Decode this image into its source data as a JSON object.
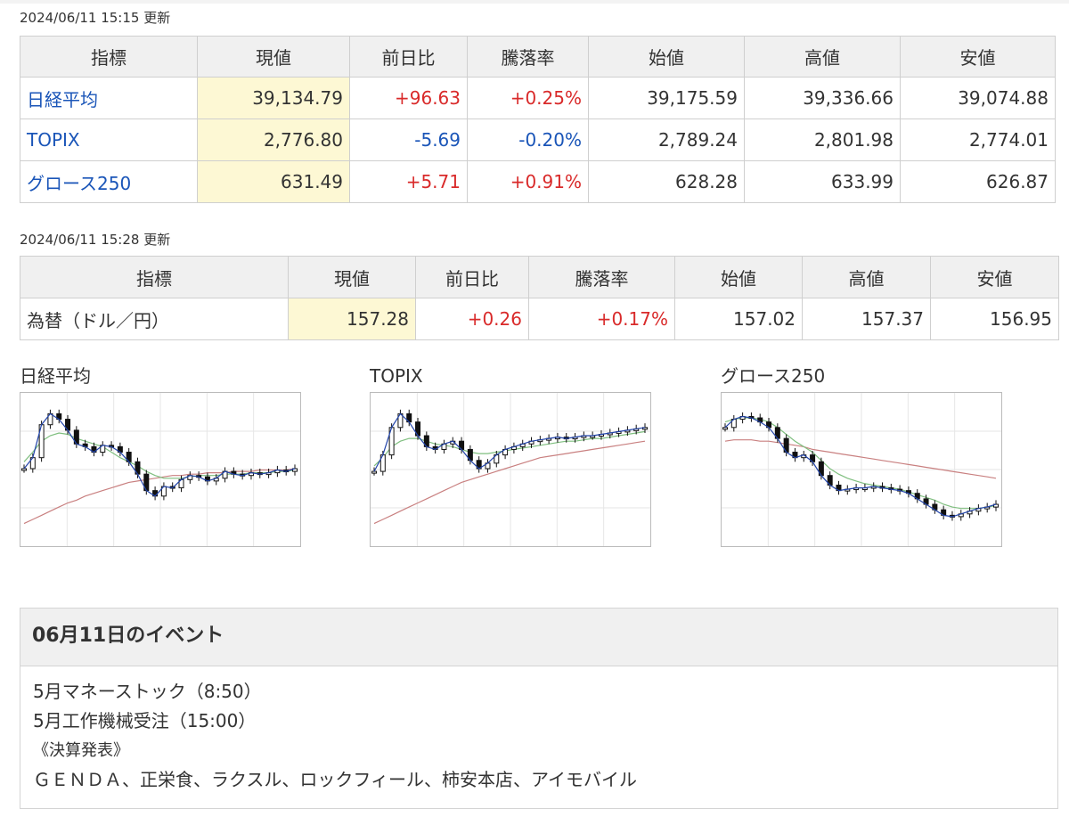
{
  "indices_block": {
    "updated": "2024/06/11 15:15 更新",
    "headers": [
      "指標",
      "現値",
      "前日比",
      "騰落率",
      "始値",
      "高値",
      "安値"
    ],
    "rows": [
      {
        "name": "日経平均",
        "current": "39,134.79",
        "change": "+96.63",
        "rate": "+0.25%",
        "open": "39,175.59",
        "high": "39,336.66",
        "low": "39,074.88",
        "direction": "up"
      },
      {
        "name": "TOPIX",
        "current": "2,776.80",
        "change": "-5.69",
        "rate": "-0.20%",
        "open": "2,789.24",
        "high": "2,801.98",
        "low": "2,774.01",
        "direction": "down"
      },
      {
        "name": "グロース250",
        "current": "631.49",
        "change": "+5.71",
        "rate": "+0.91%",
        "open": "628.28",
        "high": "633.99",
        "low": "626.87",
        "direction": "up"
      }
    ]
  },
  "fx_block": {
    "updated": "2024/06/11 15:28 更新",
    "headers": [
      "指標",
      "現値",
      "前日比",
      "騰落率",
      "始値",
      "高値",
      "安値"
    ],
    "rows": [
      {
        "name": "為替（ドル／円）",
        "current": "157.28",
        "change": "+0.26",
        "rate": "+0.17%",
        "open": "157.02",
        "high": "157.37",
        "low": "156.95",
        "direction": "up"
      }
    ]
  },
  "colors": {
    "up": "#d92a2a",
    "down": "#1a55b8",
    "link": "#1a55b8",
    "current_bg": "#fdf8d4",
    "ma_short": "#2244aa",
    "ma_mid": "#7fbf7f",
    "ma_long": "#c98080"
  },
  "charts": [
    {
      "title": "日経平均"
    },
    {
      "title": "TOPIX"
    },
    {
      "title": "グロース250"
    }
  ],
  "chart_data": [
    {
      "type": "candlestick",
      "title": "日経平均",
      "series": [
        {
          "values": [
            0.5,
            0.58,
            0.82,
            0.9,
            0.86,
            0.78,
            0.68,
            0.66,
            0.62,
            0.67,
            0.66,
            0.62,
            0.55,
            0.46,
            0.34,
            0.3,
            0.37,
            0.36,
            0.42,
            0.45,
            0.44,
            0.41,
            0.43,
            0.48,
            0.46,
            0.45,
            0.47,
            0.46,
            0.47,
            0.49,
            0.48,
            0.5
          ]
        },
        {
          "values": [
            0.55,
            0.62,
            0.7,
            0.74,
            0.76,
            0.75,
            0.72,
            0.7,
            0.68,
            0.66,
            0.62,
            0.58,
            0.55,
            0.52,
            0.48,
            0.45,
            0.43,
            0.43,
            0.43,
            0.44,
            0.45,
            0.45,
            0.45,
            0.46,
            0.46,
            0.46,
            0.47,
            0.47,
            0.47,
            0.48,
            0.48,
            0.49
          ]
        },
        {
          "values": [
            0.1,
            0.13,
            0.16,
            0.19,
            0.22,
            0.25,
            0.27,
            0.3,
            0.32,
            0.34,
            0.36,
            0.38,
            0.4,
            0.41,
            0.42,
            0.43,
            0.44,
            0.45,
            0.45,
            0.46,
            0.46,
            0.47,
            0.47,
            0.47,
            0.48,
            0.48,
            0.48,
            0.49,
            0.49,
            0.49,
            0.49,
            0.5
          ]
        }
      ]
    },
    {
      "type": "candlestick",
      "title": "TOPIX",
      "series": [
        {
          "values": [
            0.48,
            0.6,
            0.8,
            0.9,
            0.84,
            0.74,
            0.66,
            0.64,
            0.68,
            0.7,
            0.64,
            0.56,
            0.5,
            0.54,
            0.6,
            0.64,
            0.66,
            0.68,
            0.7,
            0.71,
            0.72,
            0.73,
            0.72,
            0.73,
            0.74,
            0.74,
            0.75,
            0.76,
            0.77,
            0.78,
            0.79,
            0.8
          ]
        },
        {
          "values": [
            0.52,
            0.58,
            0.66,
            0.7,
            0.72,
            0.72,
            0.7,
            0.68,
            0.67,
            0.66,
            0.64,
            0.62,
            0.61,
            0.61,
            0.62,
            0.63,
            0.64,
            0.65,
            0.66,
            0.67,
            0.68,
            0.69,
            0.7,
            0.7,
            0.71,
            0.72,
            0.72,
            0.73,
            0.74,
            0.75,
            0.76,
            0.77
          ]
        },
        {
          "values": [
            0.1,
            0.13,
            0.16,
            0.19,
            0.22,
            0.25,
            0.28,
            0.31,
            0.34,
            0.37,
            0.4,
            0.42,
            0.44,
            0.46,
            0.48,
            0.5,
            0.52,
            0.54,
            0.56,
            0.58,
            0.59,
            0.6,
            0.61,
            0.62,
            0.63,
            0.64,
            0.65,
            0.66,
            0.67,
            0.68,
            0.69,
            0.7
          ]
        }
      ]
    },
    {
      "type": "candlestick",
      "title": "グロース250",
      "series": [
        {
          "values": [
            0.8,
            0.86,
            0.88,
            0.87,
            0.84,
            0.8,
            0.72,
            0.62,
            0.58,
            0.6,
            0.55,
            0.45,
            0.38,
            0.34,
            0.35,
            0.36,
            0.36,
            0.37,
            0.36,
            0.35,
            0.34,
            0.32,
            0.28,
            0.24,
            0.2,
            0.16,
            0.15,
            0.17,
            0.19,
            0.21,
            0.22,
            0.24
          ]
        },
        {
          "values": [
            0.84,
            0.86,
            0.87,
            0.87,
            0.86,
            0.84,
            0.8,
            0.75,
            0.7,
            0.66,
            0.62,
            0.56,
            0.5,
            0.46,
            0.43,
            0.41,
            0.39,
            0.38,
            0.37,
            0.36,
            0.35,
            0.33,
            0.31,
            0.29,
            0.27,
            0.24,
            0.22,
            0.21,
            0.21,
            0.21,
            0.22,
            0.23
          ]
        },
        {
          "values": [
            0.7,
            0.71,
            0.71,
            0.71,
            0.7,
            0.7,
            0.69,
            0.68,
            0.67,
            0.66,
            0.64,
            0.63,
            0.62,
            0.61,
            0.6,
            0.59,
            0.58,
            0.57,
            0.56,
            0.55,
            0.54,
            0.53,
            0.52,
            0.51,
            0.5,
            0.49,
            0.48,
            0.47,
            0.46,
            0.45,
            0.44,
            0.43
          ]
        }
      ]
    }
  ],
  "events": {
    "title": "06月11日のイベント",
    "lines": [
      "5月マネーストック（8:50）",
      "5月工作機械受注（15:00）",
      "《決算発表》",
      "ＧＥＮＤＡ、正栄食、ラクスル、ロックフィール、柿安本店、アイモバイル"
    ]
  }
}
